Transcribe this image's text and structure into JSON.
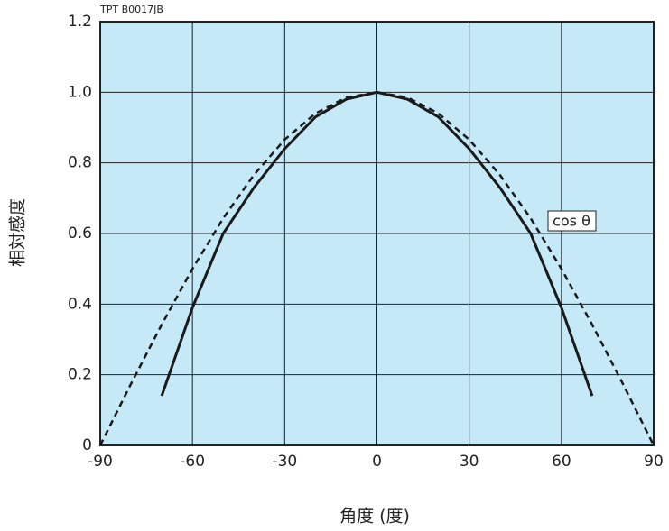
{
  "chart_data": {
    "type": "line",
    "code": "TPT B0017JB",
    "xlabel": "角度 (度)",
    "ylabel": "相対感度",
    "xlim": [
      -90,
      90
    ],
    "xticks": [
      -90,
      -60,
      -30,
      0,
      30,
      60,
      90
    ],
    "ylim": [
      0,
      1.2
    ],
    "yticks": [
      0,
      0.2,
      0.4,
      0.6,
      0.8,
      {
        "value": 1,
        "label": "1.0"
      },
      1.2
    ],
    "grid": true,
    "background": "#c6e9f8",
    "series": [
      {
        "color": "#1a1a1a",
        "style": "solid",
        "x": [
          -70,
          -60,
          -50,
          -40,
          -30,
          -20,
          -10,
          0,
          10,
          20,
          30,
          40,
          50,
          60,
          70
        ],
        "values": [
          0.14,
          0.39,
          0.6,
          0.73,
          0.84,
          0.93,
          0.98,
          1.0,
          0.98,
          0.93,
          0.84,
          0.73,
          0.6,
          0.39,
          0.14
        ]
      },
      {
        "name": "cos θ",
        "color": "#1a1a1a",
        "style": "dashed",
        "x": [
          -90,
          -80,
          -70,
          -60,
          -50,
          -40,
          -30,
          -20,
          -10,
          0,
          10,
          20,
          30,
          40,
          50,
          60,
          70,
          80,
          90
        ],
        "values": [
          0,
          0.174,
          0.342,
          0.5,
          0.643,
          0.766,
          0.866,
          0.94,
          0.985,
          1.0,
          0.985,
          0.94,
          0.866,
          0.766,
          0.643,
          0.5,
          0.342,
          0.174,
          0
        ]
      }
    ]
  }
}
